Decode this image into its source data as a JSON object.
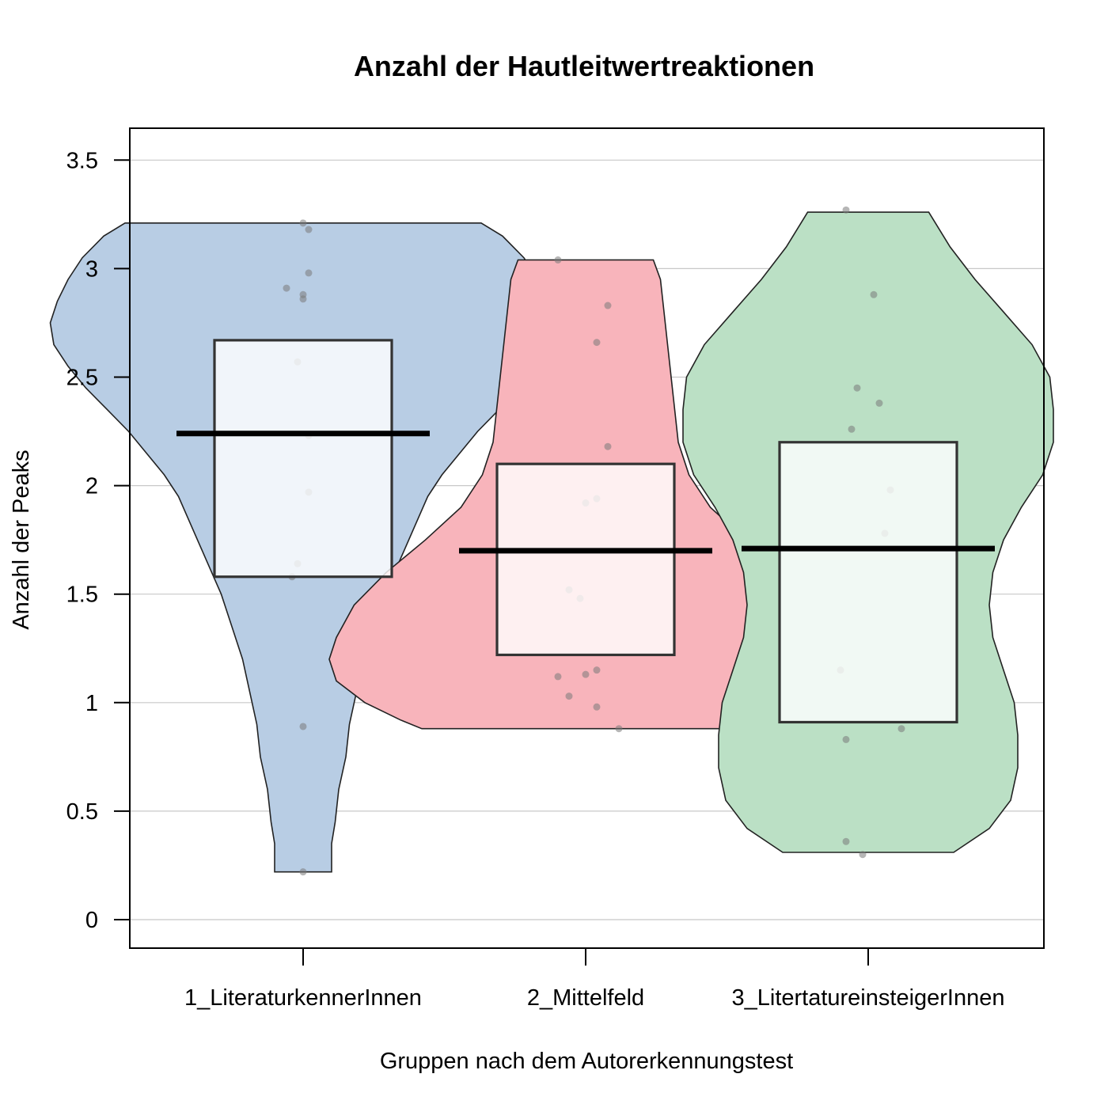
{
  "chart_data": {
    "type": "pirate",
    "title": "Anzahl der Hautleitwertreaktionen",
    "xlabel": "Gruppen nach dem Autorerkennungstest",
    "ylabel": "Anzahl der Peaks",
    "ylim": [
      -0.1,
      3.65
    ],
    "yticks": [
      0,
      0.5,
      1,
      1.5,
      2,
      2.5,
      3,
      3.5
    ],
    "ytick_labels": [
      "0",
      "0.5",
      "1",
      "1.5",
      "2",
      "2.5",
      "3",
      "3.5"
    ],
    "grid": true,
    "groups": [
      {
        "label": "1_LiteraturkennerInnen",
        "color": "#b8cde4",
        "mean": 2.24,
        "box": [
          1.58,
          2.67
        ],
        "violin": [
          [
            3.21,
            0.5
          ],
          [
            3.15,
            0.56
          ],
          [
            3.05,
            0.62
          ],
          [
            2.95,
            0.66
          ],
          [
            2.85,
            0.69
          ],
          [
            2.75,
            0.71
          ],
          [
            2.65,
            0.7
          ],
          [
            2.55,
            0.66
          ],
          [
            2.45,
            0.61
          ],
          [
            2.35,
            0.55
          ],
          [
            2.25,
            0.49
          ],
          [
            2.15,
            0.44
          ],
          [
            2.05,
            0.39
          ],
          [
            1.95,
            0.35
          ],
          [
            1.8,
            0.31
          ],
          [
            1.65,
            0.27
          ],
          [
            1.5,
            0.23
          ],
          [
            1.35,
            0.2
          ],
          [
            1.2,
            0.17
          ],
          [
            1.05,
            0.15
          ],
          [
            0.9,
            0.13
          ],
          [
            0.75,
            0.12
          ],
          [
            0.6,
            0.1
          ],
          [
            0.45,
            0.09
          ],
          [
            0.35,
            0.08
          ],
          [
            0.22,
            0.08
          ]
        ],
        "points": [
          [
            0.0,
            3.21
          ],
          [
            0.01,
            3.18
          ],
          [
            0.01,
            2.98
          ],
          [
            -0.03,
            2.91
          ],
          [
            0.0,
            2.88
          ],
          [
            0.0,
            2.86
          ],
          [
            -0.01,
            2.57
          ],
          [
            0.01,
            2.23
          ],
          [
            0.01,
            1.97
          ],
          [
            -0.01,
            1.64
          ],
          [
            -0.02,
            1.58
          ],
          [
            0.0,
            0.89
          ],
          [
            0.0,
            0.22
          ]
        ]
      },
      {
        "label": "2_Mittelfeld",
        "color": "#f8b4bb",
        "mean": 1.7,
        "box": [
          1.22,
          2.1
        ],
        "violin": [
          [
            3.04,
            0.19
          ],
          [
            2.95,
            0.21
          ],
          [
            2.8,
            0.22
          ],
          [
            2.65,
            0.23
          ],
          [
            2.5,
            0.24
          ],
          [
            2.35,
            0.25
          ],
          [
            2.2,
            0.26
          ],
          [
            2.05,
            0.29
          ],
          [
            1.9,
            0.35
          ],
          [
            1.75,
            0.45
          ],
          [
            1.6,
            0.56
          ],
          [
            1.45,
            0.65
          ],
          [
            1.3,
            0.7
          ],
          [
            1.2,
            0.72
          ],
          [
            1.1,
            0.7
          ],
          [
            1.0,
            0.62
          ],
          [
            0.92,
            0.52
          ],
          [
            0.88,
            0.46
          ]
        ],
        "points": [
          [
            -0.05,
            3.04
          ],
          [
            0.04,
            2.83
          ],
          [
            0.02,
            2.66
          ],
          [
            0.04,
            2.18
          ],
          [
            0.02,
            1.94
          ],
          [
            0.0,
            1.92
          ],
          [
            -0.03,
            1.52
          ],
          [
            -0.01,
            1.48
          ],
          [
            0.02,
            1.15
          ],
          [
            0.0,
            1.13
          ],
          [
            -0.05,
            1.12
          ],
          [
            -0.03,
            1.03
          ],
          [
            0.02,
            0.98
          ],
          [
            0.06,
            0.88
          ]
        ]
      },
      {
        "label": "3_LitertatureinsteigerInnen",
        "color": "#bbe0c5",
        "mean": 1.71,
        "box": [
          0.91,
          2.2
        ],
        "violin": [
          [
            3.26,
            0.17
          ],
          [
            3.1,
            0.23
          ],
          [
            2.95,
            0.3
          ],
          [
            2.8,
            0.38
          ],
          [
            2.65,
            0.46
          ],
          [
            2.5,
            0.51
          ],
          [
            2.35,
            0.52
          ],
          [
            2.2,
            0.52
          ],
          [
            2.05,
            0.49
          ],
          [
            1.9,
            0.43
          ],
          [
            1.75,
            0.38
          ],
          [
            1.6,
            0.35
          ],
          [
            1.45,
            0.34
          ],
          [
            1.3,
            0.35
          ],
          [
            1.15,
            0.38
          ],
          [
            1.0,
            0.41
          ],
          [
            0.85,
            0.42
          ],
          [
            0.7,
            0.42
          ],
          [
            0.55,
            0.4
          ],
          [
            0.42,
            0.34
          ],
          [
            0.31,
            0.24
          ]
        ],
        "points": [
          [
            -0.04,
            3.27
          ],
          [
            0.01,
            2.88
          ],
          [
            -0.02,
            2.45
          ],
          [
            0.02,
            2.38
          ],
          [
            -0.03,
            2.26
          ],
          [
            0.04,
            1.98
          ],
          [
            0.03,
            1.78
          ],
          [
            -0.05,
            1.15
          ],
          [
            0.06,
            0.88
          ],
          [
            -0.04,
            0.83
          ],
          [
            -0.04,
            0.36
          ],
          [
            -0.01,
            0.3
          ]
        ]
      }
    ]
  }
}
